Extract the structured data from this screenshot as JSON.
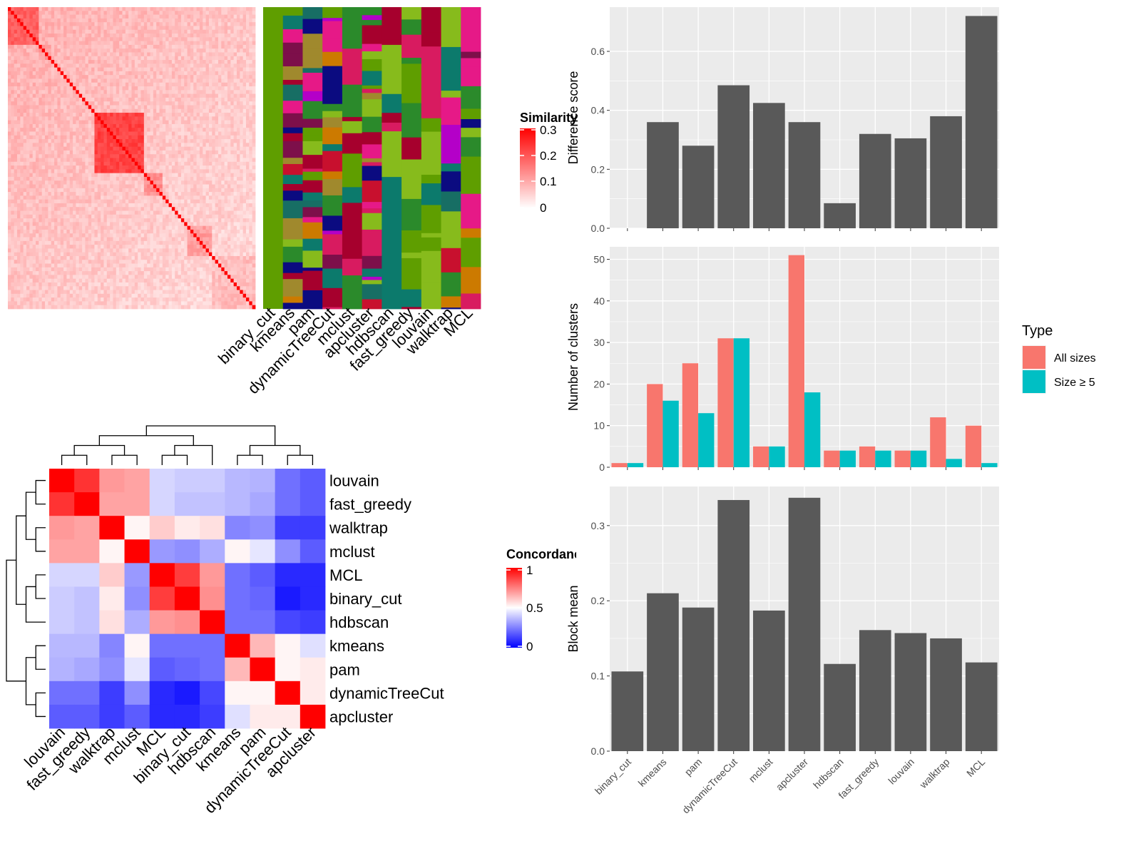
{
  "methods": [
    "binary_cut",
    "kmeans",
    "pam",
    "dynamicTreeCut",
    "mclust",
    "apcluster",
    "hdbscan",
    "fast_greedy",
    "louvain",
    "walktrap",
    "MCL"
  ],
  "similarity_heatmap": {
    "legend_title": "Similarity",
    "legend_ticks": [
      "0.3",
      "0.2",
      "0.1",
      "0"
    ],
    "colors": {
      "low": "#ffffff",
      "high": "#ff0000"
    }
  },
  "cluster_palette": [
    "#5f9e00",
    "#87bb1c",
    "#a6002d",
    "#d81b60",
    "#0c7a6c",
    "#2b8a2b",
    "#c8102e",
    "#e61987",
    "#0b0b80",
    "#cc7a00",
    "#7d0f4a",
    "#b400c8",
    "#176e64",
    "#a0892d"
  ],
  "concordance_heatmap": {
    "legend_title": "Concordance",
    "legend_ticks": [
      "1",
      "0.5",
      "0"
    ],
    "row_order": [
      "louvain",
      "fast_greedy",
      "walktrap",
      "mclust",
      "MCL",
      "binary_cut",
      "hdbscan",
      "kmeans",
      "pam",
      "dynamicTreeCut",
      "apcluster"
    ],
    "matrix": [
      [
        1.0,
        0.9,
        0.7,
        0.68,
        0.42,
        0.4,
        0.4,
        0.36,
        0.35,
        0.22,
        0.18
      ],
      [
        0.9,
        1.0,
        0.68,
        0.68,
        0.42,
        0.38,
        0.38,
        0.36,
        0.33,
        0.22,
        0.18
      ],
      [
        0.7,
        0.68,
        1.0,
        0.52,
        0.6,
        0.54,
        0.56,
        0.26,
        0.28,
        0.12,
        0.12
      ],
      [
        0.68,
        0.68,
        0.52,
        1.0,
        0.3,
        0.28,
        0.34,
        0.52,
        0.45,
        0.28,
        0.18
      ],
      [
        0.42,
        0.42,
        0.6,
        0.3,
        1.0,
        0.88,
        0.7,
        0.22,
        0.18,
        0.08,
        0.08
      ],
      [
        0.4,
        0.38,
        0.54,
        0.28,
        0.88,
        1.0,
        0.72,
        0.22,
        0.2,
        0.05,
        0.08
      ],
      [
        0.4,
        0.38,
        0.56,
        0.34,
        0.7,
        0.72,
        1.0,
        0.22,
        0.22,
        0.14,
        0.12
      ],
      [
        0.36,
        0.36,
        0.26,
        0.52,
        0.22,
        0.22,
        0.22,
        1.0,
        0.64,
        0.52,
        0.44
      ],
      [
        0.35,
        0.33,
        0.28,
        0.45,
        0.18,
        0.2,
        0.22,
        0.64,
        1.0,
        0.52,
        0.54
      ],
      [
        0.22,
        0.22,
        0.12,
        0.28,
        0.08,
        0.05,
        0.14,
        0.52,
        0.52,
        1.0,
        0.54
      ],
      [
        0.18,
        0.18,
        0.12,
        0.18,
        0.08,
        0.08,
        0.12,
        0.44,
        0.54,
        0.54,
        1.0
      ]
    ],
    "colors": {
      "low": "#0000ff",
      "mid": "#ffffff",
      "high": "#ff0000"
    }
  },
  "chart_data": [
    {
      "type": "bar",
      "title": "",
      "xlabel": "",
      "ylabel": "Difference score",
      "categories": [
        "binary_cut",
        "kmeans",
        "pam",
        "dynamicTreeCut",
        "mclust",
        "apcluster",
        "hdbscan",
        "fast_greedy",
        "louvain",
        "walktrap",
        "MCL"
      ],
      "values": [
        0.0,
        0.36,
        0.28,
        0.485,
        0.425,
        0.36,
        0.085,
        0.32,
        0.305,
        0.38,
        0.72
      ],
      "ylim": [
        0,
        0.75
      ],
      "yticks": [
        0.0,
        0.2,
        0.4,
        0.6
      ],
      "ytick_labels": [
        "0.0",
        "0.2",
        "0.4",
        "0.6"
      ],
      "grid": true,
      "colors": {
        "bar": "#595959",
        "panel": "#ebebeb",
        "grid": "#ffffff"
      }
    },
    {
      "type": "bar",
      "title": "",
      "xlabel": "",
      "ylabel": "Number of clusters",
      "categories": [
        "binary_cut",
        "kmeans",
        "pam",
        "dynamicTreeCut",
        "mclust",
        "apcluster",
        "hdbscan",
        "fast_greedy",
        "louvain",
        "walktrap",
        "MCL"
      ],
      "series": [
        {
          "name": "All sizes",
          "color": "#f8766d",
          "values": [
            1,
            20,
            25,
            31,
            5,
            51,
            4,
            5,
            4,
            12,
            10
          ]
        },
        {
          "name": "Size ≥ 5",
          "color": "#00bfc4",
          "values": [
            1,
            16,
            13,
            31,
            5,
            18,
            4,
            4,
            4,
            2,
            1
          ]
        }
      ],
      "ylim": [
        0,
        53
      ],
      "yticks": [
        0,
        10,
        20,
        30,
        40,
        50
      ],
      "ytick_labels": [
        "0",
        "10",
        "20",
        "30",
        "40",
        "50"
      ],
      "legend": {
        "title": "Type",
        "position": "right"
      },
      "grid": true
    },
    {
      "type": "bar",
      "title": "",
      "xlabel": "",
      "ylabel": "Block mean",
      "categories": [
        "binary_cut",
        "kmeans",
        "pam",
        "dynamicTreeCut",
        "mclust",
        "apcluster",
        "hdbscan",
        "fast_greedy",
        "louvain",
        "walktrap",
        "MCL"
      ],
      "values": [
        0.106,
        0.21,
        0.191,
        0.334,
        0.187,
        0.337,
        0.116,
        0.161,
        0.157,
        0.15,
        0.118
      ],
      "ylim": [
        0,
        0.352
      ],
      "yticks": [
        0.0,
        0.1,
        0.2,
        0.3
      ],
      "ytick_labels": [
        "0.0",
        "0.1",
        "0.2",
        "0.3"
      ],
      "grid": true,
      "colors": {
        "bar": "#595959"
      }
    }
  ]
}
